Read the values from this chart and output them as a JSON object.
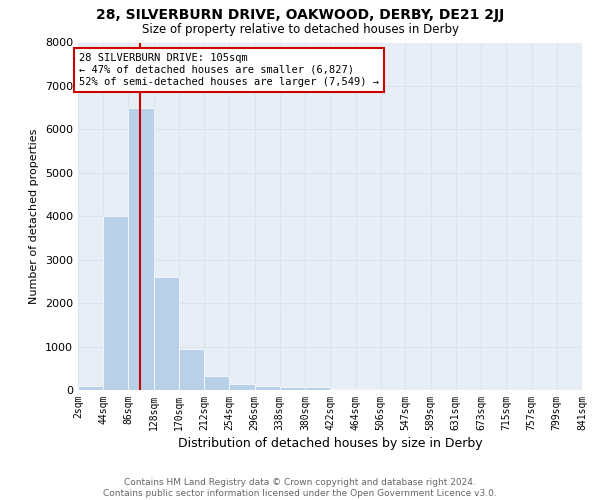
{
  "title": "28, SILVERBURN DRIVE, OAKWOOD, DERBY, DE21 2JJ",
  "subtitle": "Size of property relative to detached houses in Derby",
  "xlabel": "Distribution of detached houses by size in Derby",
  "ylabel": "Number of detached properties",
  "bar_color": "#b8d0e8",
  "bin_edges": [
    2,
    44,
    86,
    128,
    170,
    212,
    254,
    296,
    338,
    380,
    422,
    464,
    506,
    547,
    589,
    631,
    673,
    715,
    757,
    799,
    841
  ],
  "bar_heights": [
    100,
    4000,
    6500,
    2600,
    950,
    330,
    140,
    100,
    80,
    80,
    30,
    20,
    10,
    5,
    5,
    3,
    2,
    2,
    1,
    1
  ],
  "tick_labels": [
    "2sqm",
    "44sqm",
    "86sqm",
    "128sqm",
    "170sqm",
    "212sqm",
    "254sqm",
    "296sqm",
    "338sqm",
    "380sqm",
    "422sqm",
    "464sqm",
    "506sqm",
    "547sqm",
    "589sqm",
    "631sqm",
    "673sqm",
    "715sqm",
    "757sqm",
    "799sqm",
    "841sqm"
  ],
  "property_size": 105,
  "vline_color": "#cc0000",
  "annotation_line1": "28 SILVERBURN DRIVE: 105sqm",
  "annotation_line2": "← 47% of detached houses are smaller (6,827)",
  "annotation_line3": "52% of semi-detached houses are larger (7,549) →",
  "annotation_box_color": "#cc0000",
  "ylim": [
    0,
    8000
  ],
  "yticks": [
    0,
    1000,
    2000,
    3000,
    4000,
    5000,
    6000,
    7000,
    8000
  ],
  "grid_color": "#d8e4ee",
  "background_color": "#e8eef6",
  "footer_line1": "Contains HM Land Registry data © Crown copyright and database right 2024.",
  "footer_line2": "Contains public sector information licensed under the Open Government Licence v3.0."
}
